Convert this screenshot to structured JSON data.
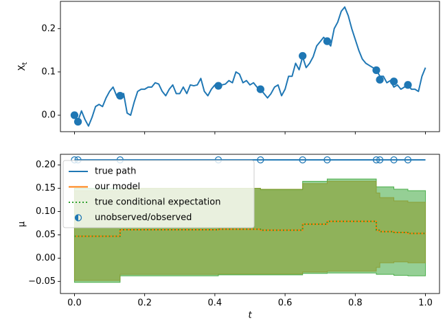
{
  "chart_data": [
    {
      "type": "line",
      "ylabel": "X",
      "ylabel_sub": "t",
      "xlim": [
        -0.04,
        1.04
      ],
      "ylim": [
        -0.038,
        0.263
      ],
      "xticks": [
        0,
        0.2,
        0.4,
        0.6,
        0.8,
        1
      ],
      "show_xticklabels": false,
      "yticks": [
        {
          "value": 0,
          "label": "0.0"
        },
        0.1,
        0.2
      ],
      "series": [
        {
          "type": "line",
          "color": "#1f77b4",
          "x": [
            0,
            0.01,
            0.02,
            0.03,
            0.04,
            0.05,
            0.06,
            0.07,
            0.08,
            0.09,
            0.1,
            0.11,
            0.12,
            0.13,
            0.14,
            0.15,
            0.16,
            0.17,
            0.18,
            0.19,
            0.2,
            0.21,
            0.22,
            0.23,
            0.24,
            0.25,
            0.26,
            0.27,
            0.28,
            0.29,
            0.3,
            0.31,
            0.32,
            0.33,
            0.34,
            0.35,
            0.36,
            0.37,
            0.38,
            0.39,
            0.4,
            0.41,
            0.42,
            0.43,
            0.44,
            0.45,
            0.46,
            0.47,
            0.48,
            0.49,
            0.5,
            0.51,
            0.52,
            0.53,
            0.54,
            0.55,
            0.56,
            0.57,
            0.58,
            0.59,
            0.6,
            0.61,
            0.62,
            0.63,
            0.64,
            0.65,
            0.66,
            0.67,
            0.68,
            0.69,
            0.7,
            0.71,
            0.72,
            0.73,
            0.74,
            0.75,
            0.76,
            0.77,
            0.78,
            0.79,
            0.8,
            0.81,
            0.82,
            0.83,
            0.84,
            0.85,
            0.86,
            0.87,
            0.88,
            0.89,
            0.9,
            0.91,
            0.92,
            0.93,
            0.94,
            0.95,
            0.96,
            0.97,
            0.98,
            0.99,
            1
          ],
          "values": [
            0,
            -0.013,
            0.01,
            -0.01,
            -0.025,
            -0.005,
            0.02,
            0.025,
            0.02,
            0.04,
            0.055,
            0.065,
            0.045,
            0.045,
            0.05,
            0.005,
            0,
            0.03,
            0.055,
            0.06,
            0.06,
            0.065,
            0.065,
            0.075,
            0.072,
            0.055,
            0.045,
            0.06,
            0.07,
            0.05,
            0.05,
            0.065,
            0.05,
            0.07,
            0.068,
            0.07,
            0.085,
            0.055,
            0.045,
            0.06,
            0.07,
            0.068,
            0.07,
            0.072,
            0.08,
            0.075,
            0.1,
            0.095,
            0.075,
            0.08,
            0.07,
            0.075,
            0.065,
            0.06,
            0.05,
            0.04,
            0.05,
            0.065,
            0.07,
            0.045,
            0.06,
            0.09,
            0.09,
            0.12,
            0.105,
            0.135,
            0.11,
            0.12,
            0.135,
            0.16,
            0.17,
            0.18,
            0.17,
            0.16,
            0.2,
            0.215,
            0.24,
            0.25,
            0.23,
            0.2,
            0.175,
            0.15,
            0.13,
            0.12,
            0.115,
            0.11,
            0.105,
            0.09,
            0.09,
            0.075,
            0.08,
            0.065,
            0.07,
            0.06,
            0.065,
            0.07,
            0.06,
            0.06,
            0.055,
            0.09,
            0.11
          ]
        },
        {
          "type": "scatter",
          "color": "#1f77b4",
          "marker": "filled",
          "x": [
            0,
            0.01,
            0.13,
            0.41,
            0.53,
            0.65,
            0.72,
            0.86,
            0.87,
            0.91,
            0.95
          ],
          "values": [
            0,
            -0.015,
            0.045,
            0.068,
            0.06,
            0.137,
            0.171,
            0.104,
            0.082,
            0.078,
            0.07
          ]
        }
      ]
    },
    {
      "type": "line",
      "xlabel": "t",
      "ylabel": "μ",
      "xlim": [
        -0.04,
        1.04
      ],
      "ylim": [
        -0.076,
        0.223
      ],
      "xticks": [
        {
          "value": 0,
          "label": "0.0"
        },
        0.2,
        0.4,
        0.6,
        0.8,
        {
          "value": 1,
          "label": "1.0"
        }
      ],
      "show_xticklabels": true,
      "yticks": [
        {
          "value": -0.05,
          "label": "−0.05"
        },
        {
          "value": 0,
          "label": "0.00"
        },
        0.05,
        {
          "value": 0.1,
          "label": "0.10"
        },
        0.15,
        {
          "value": 0.2,
          "label": "0.20"
        }
      ],
      "legend": "upper left",
      "bands": [
        {
          "color": "#2ca02c",
          "opacity": 0.5,
          "x": [
            0,
            0.01,
            0.13,
            0.41,
            0.53,
            0.65,
            0.72,
            0.86,
            0.87,
            0.91,
            0.95,
            1
          ],
          "lower": [
            -0.052,
            -0.052,
            -0.038,
            -0.036,
            -0.036,
            -0.033,
            -0.032,
            -0.035,
            -0.035,
            -0.037,
            -0.038,
            -0.038
          ],
          "upper": [
            0.15,
            0.15,
            0.15,
            0.15,
            0.147,
            0.165,
            0.17,
            0.153,
            0.153,
            0.148,
            0.145,
            0.145
          ]
        },
        {
          "color": "#8a9a2a",
          "opacity": 0.55,
          "x": [
            0,
            0.01,
            0.13,
            0.41,
            0.53,
            0.65,
            0.72,
            0.86,
            0.87,
            0.91,
            0.95,
            1
          ],
          "lower": [
            -0.048,
            -0.048,
            -0.035,
            -0.034,
            -0.034,
            -0.03,
            -0.028,
            -0.02,
            -0.01,
            -0.008,
            -0.01,
            -0.01
          ],
          "upper": [
            0.145,
            0.145,
            0.15,
            0.15,
            0.148,
            0.16,
            0.165,
            0.14,
            0.13,
            0.123,
            0.12,
            0.12
          ]
        }
      ],
      "series": [
        {
          "name": "true path",
          "type": "line",
          "color": "#1f77b4",
          "x": [
            0,
            1
          ],
          "values": [
            0.211,
            0.211
          ]
        },
        {
          "name": "our model",
          "type": "step",
          "color": "#ff7f0e",
          "x": [
            0,
            0.01,
            0.13,
            0.41,
            0.53,
            0.65,
            0.72,
            0.86,
            0.87,
            0.91,
            0.95,
            1
          ],
          "values": [
            0.047,
            0.047,
            0.061,
            0.062,
            0.06,
            0.073,
            0.079,
            0.06,
            0.057,
            0.055,
            0.053,
            0.053
          ]
        },
        {
          "name": "true conditional expectation",
          "type": "step",
          "color": "#2ca02c",
          "dash": "dotted",
          "x": [
            0,
            0.01,
            0.13,
            0.41,
            0.53,
            0.65,
            0.72,
            0.86,
            0.87,
            0.91,
            0.95,
            1
          ],
          "values": [
            0.047,
            0.047,
            0.061,
            0.062,
            0.06,
            0.073,
            0.079,
            0.06,
            0.057,
            0.055,
            0.053,
            0.053
          ]
        },
        {
          "name": "unobserved/observed",
          "type": "scatter",
          "color": "#1f77b4",
          "marker": "hollow",
          "x": [
            0,
            0.01,
            0.13,
            0.41,
            0.53,
            0.65,
            0.72,
            0.86,
            0.87,
            0.91,
            0.95
          ],
          "values": [
            0.211,
            0.211,
            0.211,
            0.211,
            0.211,
            0.211,
            0.211,
            0.211,
            0.211,
            0.211,
            0.211
          ]
        }
      ]
    }
  ]
}
